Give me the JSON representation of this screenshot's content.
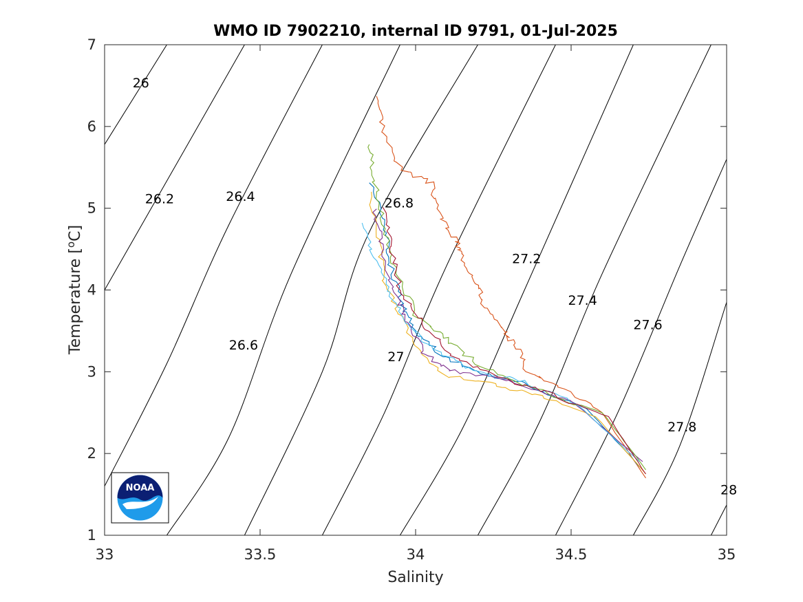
{
  "chart_data": {
    "type": "line",
    "title": "WMO ID 7902210, internal ID 9791, 01-Jul-2025",
    "xlabel": "Salinity",
    "ylabel_main": "Temperature [",
    "ylabel_sup": "o",
    "ylabel_end": "C]",
    "xlim": [
      33,
      35
    ],
    "ylim": [
      1,
      7
    ],
    "xticks": [
      33,
      33.5,
      34,
      34.5,
      35
    ],
    "xtick_labels": [
      "33",
      "33.5",
      "34",
      "34.5",
      "35"
    ],
    "yticks": [
      1,
      2,
      3,
      4,
      5,
      6,
      7
    ],
    "ytick_labels": [
      "1",
      "2",
      "3",
      "4",
      "5",
      "6",
      "7"
    ],
    "grid": false,
    "isopycnals": [
      {
        "label": "26",
        "points": [
          [
            33,
            5.78
          ],
          [
            33.2,
            7
          ]
        ],
        "label_at": [
          33.09,
          6.48
        ]
      },
      {
        "label": "26.2",
        "points": [
          [
            33,
            4.0
          ],
          [
            33.45,
            7
          ]
        ],
        "label_at": [
          33.13,
          5.06
        ]
      },
      {
        "label": "26.4",
        "points": [
          [
            33,
            1.6
          ],
          [
            33.2,
            3.1
          ],
          [
            33.4,
            4.8
          ],
          [
            33.7,
            7
          ]
        ],
        "label_at": [
          33.39,
          5.09
        ]
      },
      {
        "label": "26.6",
        "points": [
          [
            33.2,
            1
          ],
          [
            33.4,
            2.2
          ],
          [
            33.6,
            4.2
          ],
          [
            33.95,
            7
          ]
        ],
        "label_at": [
          33.4,
          3.27
        ]
      },
      {
        "label": "26.8",
        "points": [
          [
            33.45,
            1
          ],
          [
            33.7,
            3.0
          ],
          [
            33.85,
            4.7
          ],
          [
            34.2,
            7
          ]
        ],
        "label_at": [
          33.9,
          5.01
        ]
      },
      {
        "label": "27",
        "points": [
          [
            33.7,
            1
          ],
          [
            33.9,
            2.5
          ],
          [
            34.1,
            4.3
          ],
          [
            34.45,
            7
          ]
        ],
        "label_at": [
          33.91,
          3.13
        ]
      },
      {
        "label": "27.2",
        "points": [
          [
            33.95,
            1
          ],
          [
            34.15,
            2.3
          ],
          [
            34.35,
            4.0
          ],
          [
            34.7,
            7
          ]
        ],
        "label_at": [
          34.31,
          4.33
        ]
      },
      {
        "label": "27.4",
        "points": [
          [
            34.2,
            1
          ],
          [
            34.4,
            2.4
          ],
          [
            34.6,
            4.2
          ],
          [
            34.95,
            7
          ]
        ],
        "label_at": [
          34.49,
          3.82
        ]
      },
      {
        "label": "27.6",
        "points": [
          [
            34.45,
            1
          ],
          [
            34.65,
            2.5
          ],
          [
            34.85,
            4.3
          ],
          [
            35,
            5.6
          ]
        ],
        "label_at": [
          34.7,
          3.52
        ]
      },
      {
        "label": "27.8",
        "points": [
          [
            34.7,
            1
          ],
          [
            34.85,
            2.1
          ],
          [
            35,
            3.85
          ]
        ],
        "label_at": [
          34.81,
          2.27
        ]
      },
      {
        "label": "28",
        "points": [
          [
            34.95,
            1
          ],
          [
            35,
            1.37
          ]
        ],
        "label_at": [
          34.98,
          1.5
        ]
      }
    ],
    "series": [
      {
        "color": "#D95319",
        "values": [
          [
            33.88,
            6.35
          ],
          [
            33.9,
            5.9
          ],
          [
            33.95,
            5.5
          ],
          [
            34.05,
            5.3
          ],
          [
            34.08,
            4.9
          ],
          [
            34.13,
            4.6
          ],
          [
            34.15,
            4.4
          ],
          [
            34.2,
            4.1
          ],
          [
            34.22,
            3.8
          ],
          [
            34.28,
            3.5
          ],
          [
            34.33,
            3.3
          ],
          [
            34.36,
            3.0
          ],
          [
            34.45,
            2.85
          ],
          [
            34.6,
            2.5
          ],
          [
            34.74,
            1.7
          ]
        ]
      },
      {
        "color": "#0072BD",
        "values": [
          [
            33.86,
            5.3
          ],
          [
            33.9,
            4.8
          ],
          [
            33.92,
            4.3
          ],
          [
            33.96,
            3.8
          ],
          [
            34.0,
            3.5
          ],
          [
            34.08,
            3.2
          ],
          [
            34.2,
            3.0
          ],
          [
            34.35,
            2.85
          ],
          [
            34.55,
            2.55
          ],
          [
            34.73,
            1.8
          ]
        ]
      },
      {
        "color": "#EDB120",
        "values": [
          [
            33.85,
            5.2
          ],
          [
            33.88,
            4.6
          ],
          [
            33.9,
            4.1
          ],
          [
            33.95,
            3.7
          ],
          [
            34.0,
            3.3
          ],
          [
            34.1,
            2.95
          ],
          [
            34.25,
            2.85
          ],
          [
            34.4,
            2.7
          ],
          [
            34.58,
            2.45
          ],
          [
            34.74,
            1.75
          ]
        ]
      },
      {
        "color": "#7E2F8E",
        "values": [
          [
            33.87,
            5.0
          ],
          [
            33.89,
            4.5
          ],
          [
            33.93,
            4.0
          ],
          [
            33.98,
            3.6
          ],
          [
            34.03,
            3.2
          ],
          [
            34.12,
            3.0
          ],
          [
            34.3,
            2.9
          ],
          [
            34.5,
            2.65
          ],
          [
            34.73,
            1.9
          ]
        ]
      },
      {
        "color": "#77AC30",
        "values": [
          [
            33.85,
            5.8
          ],
          [
            33.87,
            5.3
          ],
          [
            33.9,
            4.7
          ],
          [
            33.94,
            4.2
          ],
          [
            34.0,
            3.7
          ],
          [
            34.1,
            3.4
          ],
          [
            34.2,
            3.1
          ],
          [
            34.38,
            2.8
          ],
          [
            34.6,
            2.5
          ],
          [
            34.74,
            1.8
          ]
        ]
      },
      {
        "color": "#4DBEEE",
        "values": [
          [
            33.83,
            4.8
          ],
          [
            33.87,
            4.4
          ],
          [
            33.91,
            4.0
          ],
          [
            33.97,
            3.6
          ],
          [
            34.05,
            3.3
          ],
          [
            34.18,
            3.0
          ],
          [
            34.33,
            2.9
          ],
          [
            34.52,
            2.6
          ],
          [
            34.72,
            1.9
          ]
        ]
      },
      {
        "color": "#A2142F",
        "values": [
          [
            33.9,
            5.0
          ],
          [
            33.92,
            4.5
          ],
          [
            33.95,
            4.0
          ],
          [
            34.02,
            3.6
          ],
          [
            34.12,
            3.2
          ],
          [
            34.25,
            2.95
          ],
          [
            34.42,
            2.75
          ],
          [
            34.62,
            2.45
          ],
          [
            34.74,
            1.75
          ]
        ]
      }
    ],
    "legend": "none",
    "logo_text": "NOAA"
  }
}
